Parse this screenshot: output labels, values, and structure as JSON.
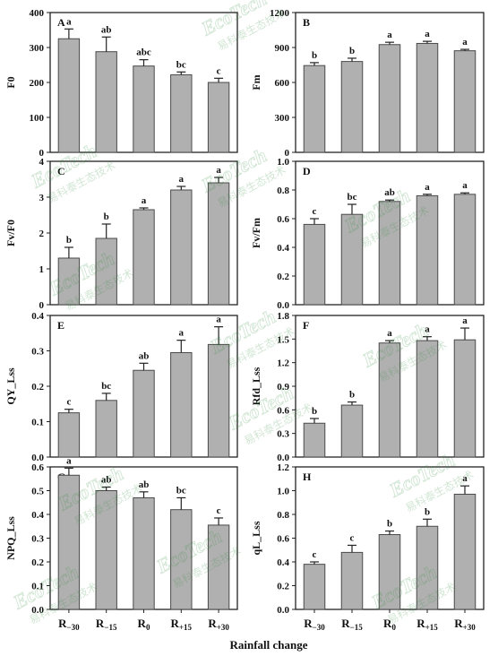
{
  "figure": {
    "xlabel": "Rainfall change",
    "categories": [
      {
        "base": "R",
        "sub": "−30"
      },
      {
        "base": "R",
        "sub": "−15"
      },
      {
        "base": "R",
        "sub": "0"
      },
      {
        "base": "R",
        "sub": "+15"
      },
      {
        "base": "R",
        "sub": "+30"
      }
    ],
    "watermark": {
      "brand": "EcoTech",
      "cn": "易科泰生态技术"
    },
    "colors": {
      "bar": "#b0b0b0",
      "bar_edge": "#4a4a4a",
      "axis": "#222222",
      "text": "#111111",
      "watermark": "#2e8b3a"
    }
  },
  "chart_data": [
    {
      "type": "bar",
      "panel": "A",
      "ylabel": "F0",
      "ylim": [
        0,
        400
      ],
      "yticks": [
        "0",
        "100",
        "200",
        "300",
        "400"
      ],
      "values": [
        325,
        288,
        247,
        222,
        200
      ],
      "errors": [
        28,
        42,
        18,
        8,
        12
      ],
      "letters": [
        "a",
        "ab",
        "abc",
        "bc",
        "c"
      ]
    },
    {
      "type": "bar",
      "panel": "B",
      "ylabel": "Fm",
      "ylim": [
        0,
        1200
      ],
      "yticks": [
        "0",
        "300",
        "600",
        "900",
        "1200"
      ],
      "values": [
        745,
        780,
        925,
        935,
        872
      ],
      "errors": [
        25,
        28,
        20,
        18,
        12
      ],
      "letters": [
        "b",
        "b",
        "a",
        "a",
        "a"
      ]
    },
    {
      "type": "bar",
      "panel": "C",
      "ylabel": "Fv/F0",
      "ylim": [
        0,
        4
      ],
      "yticks": [
        "0",
        "1",
        "2",
        "3",
        "4"
      ],
      "values": [
        1.3,
        1.85,
        2.65,
        3.2,
        3.4
      ],
      "errors": [
        0.3,
        0.4,
        0.05,
        0.1,
        0.15
      ],
      "letters": [
        "b",
        "b",
        "a",
        "a",
        "a"
      ]
    },
    {
      "type": "bar",
      "panel": "D",
      "ylabel": "Fv/Fm",
      "ylim": [
        0,
        1.0
      ],
      "yticks": [
        "0.0",
        "0.2",
        "0.4",
        "0.6",
        "0.8",
        "1.0"
      ],
      "values": [
        0.56,
        0.63,
        0.72,
        0.76,
        0.77
      ],
      "errors": [
        0.04,
        0.07,
        0.01,
        0.01,
        0.01
      ],
      "letters": [
        "c",
        "bc",
        "ab",
        "a",
        "a"
      ]
    },
    {
      "type": "bar",
      "panel": "E",
      "ylabel": "QY_Lss",
      "ylim": [
        0,
        0.4
      ],
      "yticks": [
        "0.0",
        "0.1",
        "0.2",
        "0.3",
        "0.4"
      ],
      "values": [
        0.125,
        0.16,
        0.245,
        0.295,
        0.318
      ],
      "errors": [
        0.01,
        0.02,
        0.02,
        0.035,
        0.05
      ],
      "letters": [
        "c",
        "bc",
        "ab",
        "a",
        "a"
      ]
    },
    {
      "type": "bar",
      "panel": "F",
      "ylabel": "Rfd_Lss",
      "ylim": [
        0,
        1.8
      ],
      "yticks": [
        "0.0",
        "0.3",
        "0.6",
        "0.9",
        "1.2",
        "1.5",
        "1.8"
      ],
      "values": [
        0.43,
        0.66,
        1.45,
        1.48,
        1.49
      ],
      "errors": [
        0.06,
        0.04,
        0.03,
        0.05,
        0.15
      ],
      "letters": [
        "b",
        "b",
        "a",
        "a",
        "a"
      ]
    },
    {
      "type": "bar",
      "panel": "G",
      "ylabel": "NPQ_Lss",
      "ylim": [
        0,
        0.6
      ],
      "yticks": [
        "0.0",
        "0.1",
        "0.2",
        "0.3",
        "0.4",
        "0.5",
        "0.6"
      ],
      "values": [
        0.565,
        0.5,
        0.47,
        0.42,
        0.355
      ],
      "errors": [
        0.03,
        0.015,
        0.025,
        0.05,
        0.03
      ],
      "letters": [
        "a",
        "ab",
        "ab",
        "bc",
        "c"
      ]
    },
    {
      "type": "bar",
      "panel": "H",
      "ylabel": "qL_Lss",
      "ylim": [
        0,
        1.2
      ],
      "yticks": [
        "0.0",
        "0.2",
        "0.4",
        "0.6",
        "0.8",
        "1.0",
        "1.2"
      ],
      "values": [
        0.38,
        0.48,
        0.63,
        0.7,
        0.97
      ],
      "errors": [
        0.02,
        0.06,
        0.03,
        0.06,
        0.07
      ],
      "letters": [
        "c",
        "c",
        "b",
        "b",
        "a"
      ]
    }
  ]
}
